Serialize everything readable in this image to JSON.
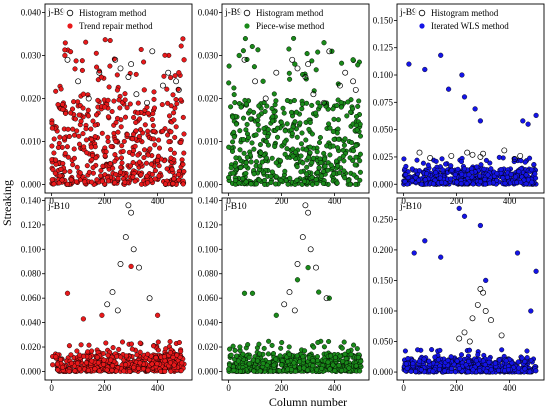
{
  "figure": {
    "ylabel": "Streaking",
    "xlabel": "Column number",
    "colors": {
      "histogram": "#000000",
      "trend": "#e8191b",
      "piecewise": "#1a8a1a",
      "wls": "#1414e6"
    }
  },
  "chart_data": [
    {
      "type": "scatter",
      "panel_label": "j-B9",
      "ylim": [
        -0.002,
        0.042
      ],
      "yticks": [
        "0.000",
        "0.010",
        "0.020",
        "0.030",
        "0.040"
      ],
      "xlim": [
        -25,
        530
      ],
      "xticks": [
        "0",
        "200",
        "400"
      ],
      "series": [
        {
          "name": "Histogram method",
          "marker": "open",
          "color": "#000000",
          "x": [
            60,
            100,
            180,
            240,
            260,
            290,
            300,
            380,
            420,
            440,
            470,
            480,
            140,
            320,
            360
          ],
          "y": [
            0.029,
            0.024,
            0.026,
            0.029,
            0.027,
            0.025,
            0.028,
            0.031,
            0.023,
            0.026,
            0.024,
            0.022,
            0.02,
            0.021,
            0.019
          ]
        },
        {
          "name": "Trend repair method",
          "marker": "filled",
          "color": "#e8191b",
          "x": [
            50,
            120,
            200,
            350,
            480,
            500
          ],
          "y": [
            0.03,
            0.021,
            0.018,
            0.022,
            0.026,
            0.029
          ]
        }
      ]
    },
    {
      "type": "scatter",
      "panel_label": "j-B9",
      "ylim": [
        -0.002,
        0.042
      ],
      "yticks": [
        "0.000",
        "0.010",
        "0.020",
        "0.030",
        "0.040"
      ],
      "xlim": [
        -25,
        530
      ],
      "xticks": [
        "0",
        "200",
        "400"
      ],
      "series": [
        {
          "name": "Histogram method",
          "marker": "open",
          "color": "#000000",
          "x": [
            60,
            100,
            180,
            240,
            260,
            290,
            300,
            380,
            420,
            440,
            470,
            480,
            140,
            320,
            360
          ],
          "y": [
            0.029,
            0.024,
            0.026,
            0.029,
            0.027,
            0.025,
            0.028,
            0.031,
            0.023,
            0.026,
            0.024,
            0.022,
            0.02,
            0.021,
            0.019
          ]
        },
        {
          "name": "Piece-wise method",
          "marker": "filled",
          "color": "#1a8a1a",
          "x": [
            40,
            130,
            250,
            360,
            390,
            470
          ],
          "y": [
            0.03,
            0.024,
            0.028,
            0.033,
            0.031,
            0.029
          ]
        }
      ]
    },
    {
      "type": "scatter",
      "panel_label": "j-B9",
      "ylim": [
        -0.008,
        0.165
      ],
      "yticks": [
        "0.000",
        "0.025",
        "0.050",
        "0.075",
        "0.100",
        "0.125",
        "0.150"
      ],
      "xlim": [
        -25,
        530
      ],
      "xticks": [
        "0",
        "200",
        "400"
      ],
      "series": [
        {
          "name": "Histogram method",
          "marker": "open",
          "color": "#000000",
          "x": [
            60,
            100,
            180,
            240,
            260,
            290,
            300,
            380,
            420,
            440
          ],
          "y": [
            0.029,
            0.024,
            0.026,
            0.029,
            0.027,
            0.025,
            0.028,
            0.031,
            0.023,
            0.026
          ]
        },
        {
          "name": "Iterated WLS method",
          "marker": "filled",
          "color": "#1414e6",
          "x": [
            20,
            80,
            140,
            170,
            220,
            230,
            270,
            290,
            450,
            470,
            500
          ],
          "y": [
            0.11,
            0.105,
            0.118,
            0.087,
            0.1,
            0.08,
            0.069,
            0.058,
            0.058,
            0.055,
            0.063
          ]
        }
      ]
    },
    {
      "type": "scatter",
      "panel_label": "j-B10",
      "ylim": [
        -0.007,
        0.142
      ],
      "yticks": [
        "0.000",
        "0.020",
        "0.040",
        "0.060",
        "0.080",
        "0.100",
        "0.120",
        "0.140"
      ],
      "xlim": [
        -25,
        530
      ],
      "xticks": [
        "0",
        "200",
        "400"
      ],
      "series": [
        {
          "name": "Histogram method",
          "marker": "open",
          "color": "#000000",
          "x": [
            290,
            300,
            280,
            310,
            260,
            330,
            230,
            210,
            250,
            370
          ],
          "y": [
            0.136,
            0.13,
            0.11,
            0.1,
            0.088,
            0.085,
            0.065,
            0.055,
            0.05,
            0.06
          ]
        },
        {
          "name": "Trend repair method",
          "marker": "filled",
          "color": "#e8191b",
          "x": [
            60,
            120,
            190,
            300,
            400
          ],
          "y": [
            0.064,
            0.043,
            0.046,
            0.086,
            0.046
          ]
        }
      ]
    },
    {
      "type": "scatter",
      "panel_label": "j-B10",
      "ylim": [
        -0.007,
        0.142
      ],
      "yticks": [
        "0.000",
        "0.020",
        "0.040",
        "0.060",
        "0.080",
        "0.100",
        "0.120",
        "0.140"
      ],
      "xlim": [
        -25,
        530
      ],
      "xticks": [
        "0",
        "200",
        "400"
      ],
      "series": [
        {
          "name": "Histogram method",
          "marker": "open",
          "color": "#000000",
          "x": [
            290,
            300,
            280,
            310,
            260,
            330,
            230,
            210,
            250,
            370
          ],
          "y": [
            0.136,
            0.13,
            0.11,
            0.1,
            0.088,
            0.085,
            0.065,
            0.055,
            0.05,
            0.06
          ]
        },
        {
          "name": "Piece-wise method",
          "marker": "filled",
          "color": "#1a8a1a",
          "x": [
            60,
            90,
            180,
            260,
            300,
            340,
            380
          ],
          "y": [
            0.064,
            0.064,
            0.046,
            0.075,
            0.085,
            0.065,
            0.06
          ]
        }
      ]
    },
    {
      "type": "scatter",
      "panel_label": "j-B10",
      "ylim": [
        -0.013,
        0.285
      ],
      "yticks": [
        "0.000",
        "0.050",
        "0.100",
        "0.150",
        "0.200",
        "0.250"
      ],
      "xlim": [
        -25,
        530
      ],
      "xticks": [
        "0",
        "200",
        "400"
      ],
      "series": [
        {
          "name": "Histogram method",
          "marker": "open",
          "color": "#000000",
          "x": [
            290,
            300,
            280,
            310,
            260,
            330,
            230,
            210,
            250,
            370
          ],
          "y": [
            0.136,
            0.13,
            0.11,
            0.1,
            0.088,
            0.085,
            0.065,
            0.055,
            0.05,
            0.06
          ]
        },
        {
          "name": "Iterated WLS method",
          "marker": "filled",
          "color": "#1414e6",
          "x": [
            40,
            80,
            140,
            210,
            230,
            290,
            310,
            430,
            480,
            500
          ],
          "y": [
            0.195,
            0.215,
            0.188,
            0.268,
            0.255,
            0.24,
            0.15,
            0.195,
            0.1,
            0.165
          ]
        }
      ]
    }
  ]
}
